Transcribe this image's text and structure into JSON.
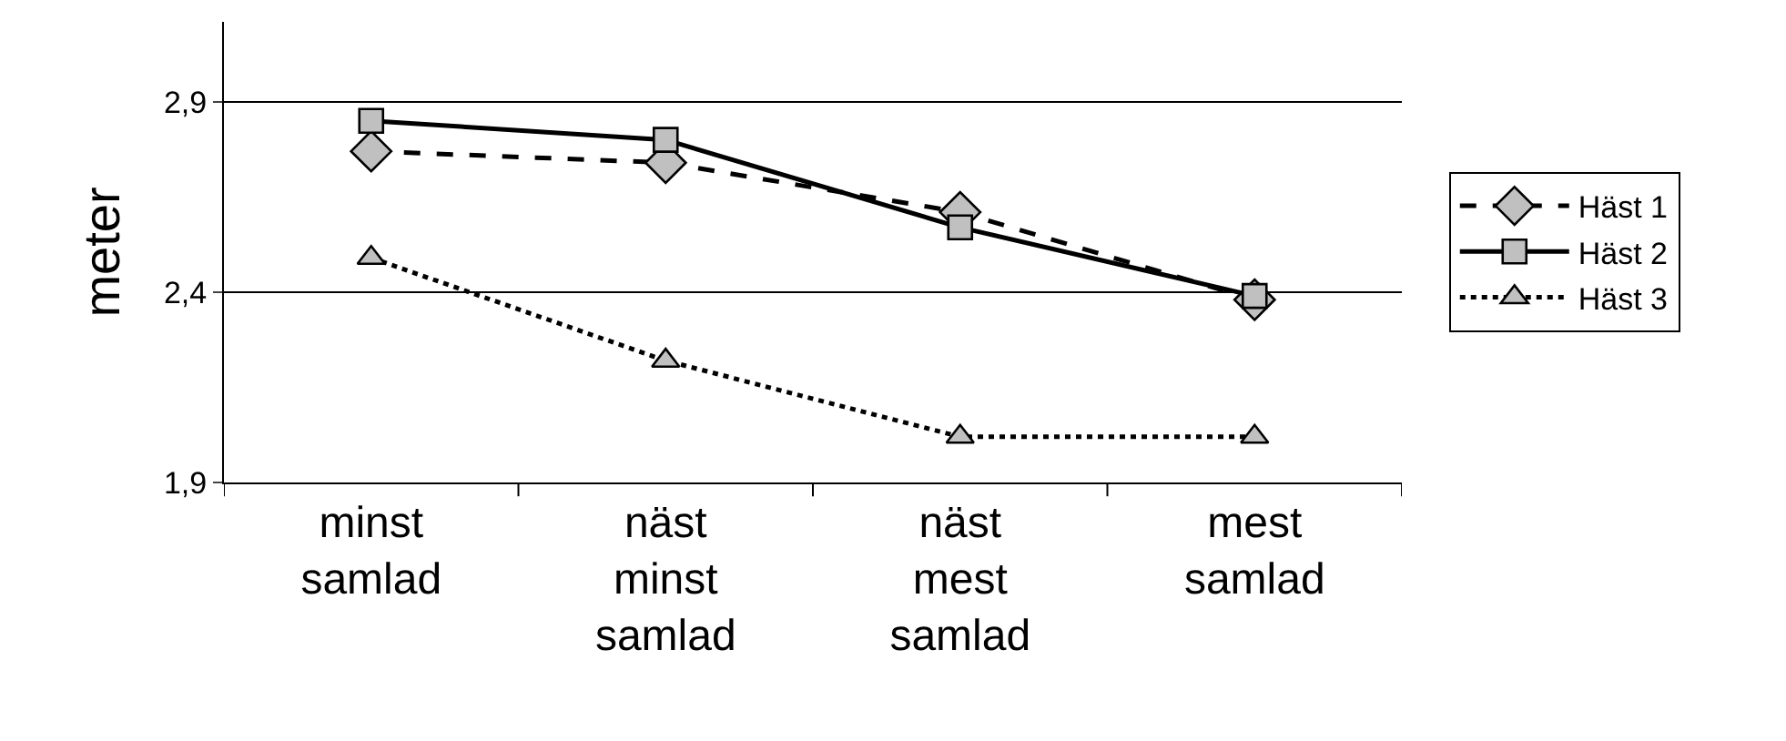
{
  "chart_data": {
    "type": "line",
    "ylabel": "meter",
    "categories": [
      "minst\nsamlad",
      "näst\nminst\nsamlad",
      "näst\nmest\nsamlad",
      "mest\nsamlad"
    ],
    "series": [
      {
        "name": "Häst 1",
        "color": "#000000",
        "values": [
          2.77,
          2.74,
          2.61,
          2.38
        ],
        "marker": "diamond",
        "line_style": "dashed"
      },
      {
        "name": "Häst 2",
        "color": "#000000",
        "values": [
          2.85,
          2.8,
          2.57,
          2.39
        ],
        "marker": "square",
        "line_style": "solid"
      },
      {
        "name": "Häst 3",
        "color": "#000000",
        "values": [
          2.49,
          2.22,
          2.02,
          2.02
        ],
        "marker": "triangle",
        "line_style": "dotted"
      }
    ],
    "ylim": [
      1.9,
      3.11
    ],
    "yticks": [
      {
        "value": 1.9,
        "label": "1,9"
      },
      {
        "value": 2.4,
        "label": "2,4"
      },
      {
        "value": 2.9,
        "label": "2,9"
      }
    ],
    "grid": "y",
    "legend": "right"
  }
}
